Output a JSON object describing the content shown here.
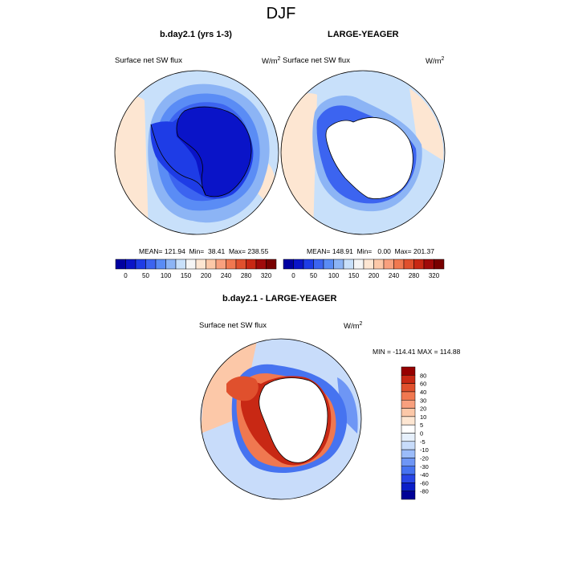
{
  "title": "DJF",
  "colors": {
    "seq": [
      "#0000a0",
      "#0a14c8",
      "#1e3ce6",
      "#3c64f0",
      "#5a8cf5",
      "#8cb4f5",
      "#c8e0fa",
      "#f5f5f5",
      "#fde6d2",
      "#fcc8a8",
      "#f8a07e",
      "#f07850",
      "#e0502d",
      "#c82814",
      "#a00a0a",
      "#780000"
    ],
    "diff": [
      "#000096",
      "#0a1ec8",
      "#2846e6",
      "#4673f0",
      "#6e96f5",
      "#9bbcfa",
      "#c8dcfa",
      "#e6f0fc",
      "#ffffff",
      "#fde6d2",
      "#fcc8a8",
      "#f8a07e",
      "#f07850",
      "#e0502d",
      "#c82814",
      "#960000"
    ],
    "land": "#ffffff",
    "coast": "#000000"
  },
  "panels": {
    "left": {
      "title": "b.day2.1 (yrs 1-3)",
      "variable": "Surface net SW flux",
      "units": "W/m",
      "units_sup": "2",
      "stats": "MEAN= 121.94  Min=  38.41  Max= 238.55"
    },
    "right": {
      "title": "LARGE-YEAGER",
      "variable": "Surface net SW flux",
      "units": "W/m",
      "units_sup": "2",
      "stats": "MEAN= 148.91  Min=   0.00  Max= 201.37"
    },
    "diff": {
      "title": "b.day2.1 - LARGE-YEAGER",
      "variable": "Surface net SW flux",
      "units": "W/m",
      "units_sup": "2",
      "stats": "MIN = -114.41 MAX = 114.88"
    }
  },
  "colorbar_top_labels": [
    "0",
    "50",
    "100",
    "150",
    "200",
    "240",
    "280",
    "320"
  ],
  "colorbar_right_labels": [
    "80",
    "60",
    "40",
    "30",
    "20",
    "10",
    "5",
    "0",
    "-5",
    "-10",
    "-20",
    "-30",
    "-40",
    "-60",
    "-80"
  ]
}
